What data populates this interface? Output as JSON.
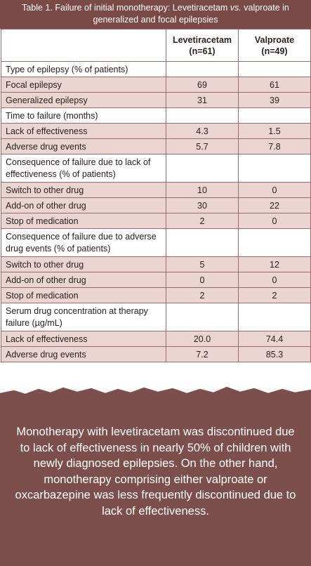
{
  "caption": {
    "prefix": "Table 1. Failure of initial monotherapy: Levetiracetam ",
    "vs": "vs.",
    "suffix": " valproate in generalized and focal epilepsies"
  },
  "table": {
    "header": {
      "col1": "",
      "col2": "Levetiracetam (n=61)",
      "col3": "Valproate (n=49)"
    },
    "rows": [
      {
        "label": "Type of epilepsy (% of patients)",
        "lev": "",
        "val": ""
      },
      {
        "label": "Focal epilepsy",
        "lev": "69",
        "val": "61"
      },
      {
        "label": "Generalized epilepsy",
        "lev": "31",
        "val": "39"
      },
      {
        "label": "Time to failure (months)",
        "lev": "",
        "val": ""
      },
      {
        "label": "Lack of effectiveness",
        "lev": "4.3",
        "val": "1.5"
      },
      {
        "label": "Adverse drug events",
        "lev": "5.7",
        "val": "7.8"
      },
      {
        "label": "Consequence of failure due to lack of effectiveness (% of patients)",
        "lev": "",
        "val": ""
      },
      {
        "label": "Switch to other drug",
        "lev": "10",
        "val": "0"
      },
      {
        "label": "Add-on of other drug",
        "lev": "30",
        "val": "22"
      },
      {
        "label": "Stop of medication",
        "lev": "2",
        "val": "0"
      },
      {
        "label": "Consequence of failure due to adverse drug events (% of patients)",
        "lev": "",
        "val": ""
      },
      {
        "label": "Switch to other drug",
        "lev": "5",
        "val": "12"
      },
      {
        "label": "Add-on of other drug",
        "lev": "0",
        "val": "0"
      },
      {
        "label": "Stop of medication",
        "lev": "2",
        "val": "2"
      },
      {
        "label": "Serum drug concentration at therapy failure (µg/mL)",
        "lev": "",
        "val": ""
      },
      {
        "label": "Lack of effectiveness",
        "lev": "20.0",
        "val": "74.4"
      },
      {
        "label": "Adverse drug events",
        "lev": "7.2",
        "val": "85.3"
      }
    ]
  },
  "banner": {
    "text": "Monotherapy with levetiracetam was discontinued due to lack of effectiveness in nearly 50% of children with newly diagnosed epilepsies. On the other hand, monotherapy comprising either valproate or oxcarbazepine was less frequently discontinued due to lack of effectiveness."
  },
  "colors": {
    "brand": "#7a4a47",
    "row_tint": "#ead5d2",
    "border": "#9c6a67",
    "banner": "#7d4f4c"
  }
}
